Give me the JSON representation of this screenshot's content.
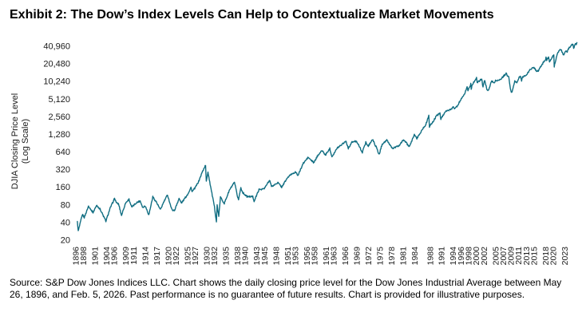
{
  "title": "Exhibit 2: The Dow’s Index Levels Can Help to Contextualize Market Movements",
  "y_axis": {
    "label_line1": "DJIA Closing Price Level",
    "label_line2": "(Log Scale)"
  },
  "source": "Source: S&P Dow Jones Indices LLC. Chart shows the daily closing price level for the Dow Jones Industrial Average between May 26, 1896, and Feb. 5, 2026. Past performance is no guarantee of future results. Chart is provided for illustrative purposes.",
  "chart_data": {
    "type": "line",
    "title": "Exhibit 2: The Dow’s Index Levels Can Help to Contextualize Market Movements",
    "ylabel": "DJIA Closing Price Level (Log Scale)",
    "xlabel": "",
    "y_scale": "log2",
    "grid": false,
    "legend": "none",
    "line_color": "#116e82",
    "y_ticks": [
      20,
      40,
      80,
      160,
      320,
      640,
      1280,
      2560,
      5120,
      10240,
      20480,
      40960
    ],
    "y_tick_labels": [
      "20",
      "40",
      "80",
      "160",
      "320",
      "640",
      "1,280",
      "2,560",
      "5,120",
      "10,240",
      "20,480",
      "40,960"
    ],
    "x_ticks": [
      1896,
      1898,
      1901,
      1904,
      1906,
      1909,
      1911,
      1914,
      1917,
      1920,
      1922,
      1925,
      1927,
      1930,
      1932,
      1935,
      1938,
      1940,
      1943,
      1945,
      1948,
      1951,
      1953,
      1956,
      1958,
      1961,
      1963,
      1966,
      1969,
      1972,
      1975,
      1978,
      1981,
      1984,
      1988,
      1991,
      1994,
      1996,
      1998,
      2000,
      2002,
      2005,
      2007,
      2009,
      2011,
      2013,
      2015,
      2018,
      2020,
      2023
    ],
    "x_range": [
      1896,
      2026.4
    ],
    "series": [
      {
        "name": "DJIA",
        "points": [
          [
            1896.4,
            41
          ],
          [
            1896.62,
            28.5
          ],
          [
            1897.7,
            55
          ],
          [
            1898.2,
            49
          ],
          [
            1899.3,
            77
          ],
          [
            1899.95,
            66
          ],
          [
            1900.5,
            59
          ],
          [
            1900.99,
            71
          ],
          [
            1901.45,
            78
          ],
          [
            1902.3,
            68
          ],
          [
            1903.8,
            42.2
          ],
          [
            1904.9,
            70
          ],
          [
            1906.05,
            103
          ],
          [
            1906.6,
            86
          ],
          [
            1907.1,
            83
          ],
          [
            1907.85,
            53
          ],
          [
            1908.9,
            86
          ],
          [
            1909.8,
            100
          ],
          [
            1910.5,
            73
          ],
          [
            1911.7,
            87
          ],
          [
            1912.7,
            94
          ],
          [
            1913.4,
            72
          ],
          [
            1914.0,
            78
          ],
          [
            1914.95,
            54
          ],
          [
            1915.98,
            110
          ],
          [
            1916.9,
            90
          ],
          [
            1917.95,
            66
          ],
          [
            1918.8,
            89
          ],
          [
            1919.8,
            119
          ],
          [
            1920.9,
            67
          ],
          [
            1921.6,
            63.9
          ],
          [
            1922.8,
            103
          ],
          [
            1923.4,
            86
          ],
          [
            1924.99,
            120
          ],
          [
            1925.9,
            159
          ],
          [
            1926.2,
            135
          ],
          [
            1926.99,
            157
          ],
          [
            1927.9,
            202
          ],
          [
            1928.9,
            300
          ],
          [
            1929.68,
            381
          ],
          [
            1929.87,
            199
          ],
          [
            1930.3,
            294
          ],
          [
            1930.99,
            165
          ],
          [
            1931.99,
            74
          ],
          [
            1932.5,
            41.2
          ],
          [
            1932.7,
            79.9
          ],
          [
            1933.1,
            50.2
          ],
          [
            1933.55,
            108.7
          ],
          [
            1934.55,
            85
          ],
          [
            1935.9,
            144
          ],
          [
            1937.2,
            194
          ],
          [
            1937.95,
            113
          ],
          [
            1938.25,
            99
          ],
          [
            1938.85,
            158
          ],
          [
            1939.3,
            131
          ],
          [
            1940.45,
            111
          ],
          [
            1941.95,
            111
          ],
          [
            1942.3,
            92.9
          ],
          [
            1943.55,
            146
          ],
          [
            1944.95,
            152
          ],
          [
            1945.95,
            195
          ],
          [
            1946.4,
            212.5
          ],
          [
            1946.8,
            163
          ],
          [
            1948.45,
            193
          ],
          [
            1949.45,
            161.6
          ],
          [
            1950.99,
            235
          ],
          [
            1951.99,
            269
          ],
          [
            1952.99,
            292
          ],
          [
            1953.7,
            255.5
          ],
          [
            1954.99,
            404
          ],
          [
            1955.99,
            488
          ],
          [
            1956.3,
            521
          ],
          [
            1957.8,
            419.8
          ],
          [
            1958.99,
            584
          ],
          [
            1959.99,
            679
          ],
          [
            1960.8,
            566
          ],
          [
            1961.95,
            735
          ],
          [
            1962.5,
            535.8
          ],
          [
            1963.99,
            763
          ],
          [
            1965.99,
            969
          ],
          [
            1966.1,
            995
          ],
          [
            1966.75,
            744
          ],
          [
            1967.7,
            943
          ],
          [
            1968.9,
            985
          ],
          [
            1970.4,
            631.2
          ],
          [
            1971.3,
            951
          ],
          [
            1971.85,
            798
          ],
          [
            1973.05,
            1052
          ],
          [
            1973.95,
            788
          ],
          [
            1974.75,
            577.6
          ],
          [
            1975.55,
            881
          ],
          [
            1976.75,
            1015
          ],
          [
            1978.2,
            742
          ],
          [
            1979.8,
            806
          ],
          [
            1980.9,
            1000
          ],
          [
            1981.3,
            1024
          ],
          [
            1982.6,
            776.9
          ],
          [
            1983.9,
            1287
          ],
          [
            1984.55,
            1086
          ],
          [
            1985.95,
            1547
          ],
          [
            1986.9,
            1896
          ],
          [
            1987.65,
            2722
          ],
          [
            1987.81,
            1738.7
          ],
          [
            1988.9,
            2169
          ],
          [
            1989.75,
            2791
          ],
          [
            1990.0,
            2753
          ],
          [
            1990.55,
            2999
          ],
          [
            1990.78,
            2365
          ],
          [
            1991.99,
            3169
          ],
          [
            1992.99,
            3301
          ],
          [
            1993.99,
            3754
          ],
          [
            1994.3,
            3593
          ],
          [
            1994.99,
            3834
          ],
          [
            1995.99,
            5117
          ],
          [
            1996.99,
            6448
          ],
          [
            1997.6,
            8259
          ],
          [
            1997.82,
            7161
          ],
          [
            1998.55,
            9337
          ],
          [
            1998.67,
            7539
          ],
          [
            1998.95,
            9181
          ],
          [
            1999.99,
            11497
          ],
          [
            2000.05,
            11723
          ],
          [
            2000.2,
            9796
          ],
          [
            2000.99,
            10788
          ],
          [
            2001.4,
            11337
          ],
          [
            2001.72,
            8236
          ],
          [
            2001.99,
            10022
          ],
          [
            2002.2,
            10635
          ],
          [
            2002.75,
            7286
          ],
          [
            2003.2,
            7524
          ],
          [
            2003.99,
            10454
          ],
          [
            2004.8,
            9749
          ],
          [
            2004.99,
            10783
          ],
          [
            2005.99,
            10718
          ],
          [
            2006.99,
            12463
          ],
          [
            2007.75,
            14164
          ],
          [
            2008.05,
            12800
          ],
          [
            2008.4,
            12263
          ],
          [
            2008.85,
            7552
          ],
          [
            2009.17,
            6547
          ],
          [
            2009.99,
            10428
          ],
          [
            2010.5,
            9686
          ],
          [
            2010.99,
            11578
          ],
          [
            2011.35,
            12811
          ],
          [
            2011.75,
            10655
          ],
          [
            2011.99,
            12218
          ],
          [
            2012.99,
            13104
          ],
          [
            2013.99,
            16577
          ],
          [
            2014.95,
            17823
          ],
          [
            2015.6,
            15666
          ],
          [
            2016.1,
            15660
          ],
          [
            2016.99,
            19763
          ],
          [
            2017.99,
            24719
          ],
          [
            2018.08,
            26617
          ],
          [
            2018.25,
            23533
          ],
          [
            2018.75,
            26828
          ],
          [
            2018.99,
            21792
          ],
          [
            2019.99,
            28538
          ],
          [
            2020.12,
            29551
          ],
          [
            2020.23,
            18591
          ],
          [
            2020.99,
            30606
          ],
          [
            2021.85,
            36432
          ],
          [
            2022.0,
            36338
          ],
          [
            2022.45,
            30000
          ],
          [
            2022.75,
            28726
          ],
          [
            2023.1,
            34000
          ],
          [
            2023.6,
            33000
          ],
          [
            2023.99,
            37690
          ],
          [
            2024.4,
            39800
          ],
          [
            2024.92,
            45014
          ],
          [
            2025.1,
            43000
          ],
          [
            2025.27,
            38300
          ],
          [
            2025.75,
            46000
          ],
          [
            2025.95,
            44500
          ],
          [
            2026.1,
            47300
          ]
        ]
      }
    ]
  }
}
